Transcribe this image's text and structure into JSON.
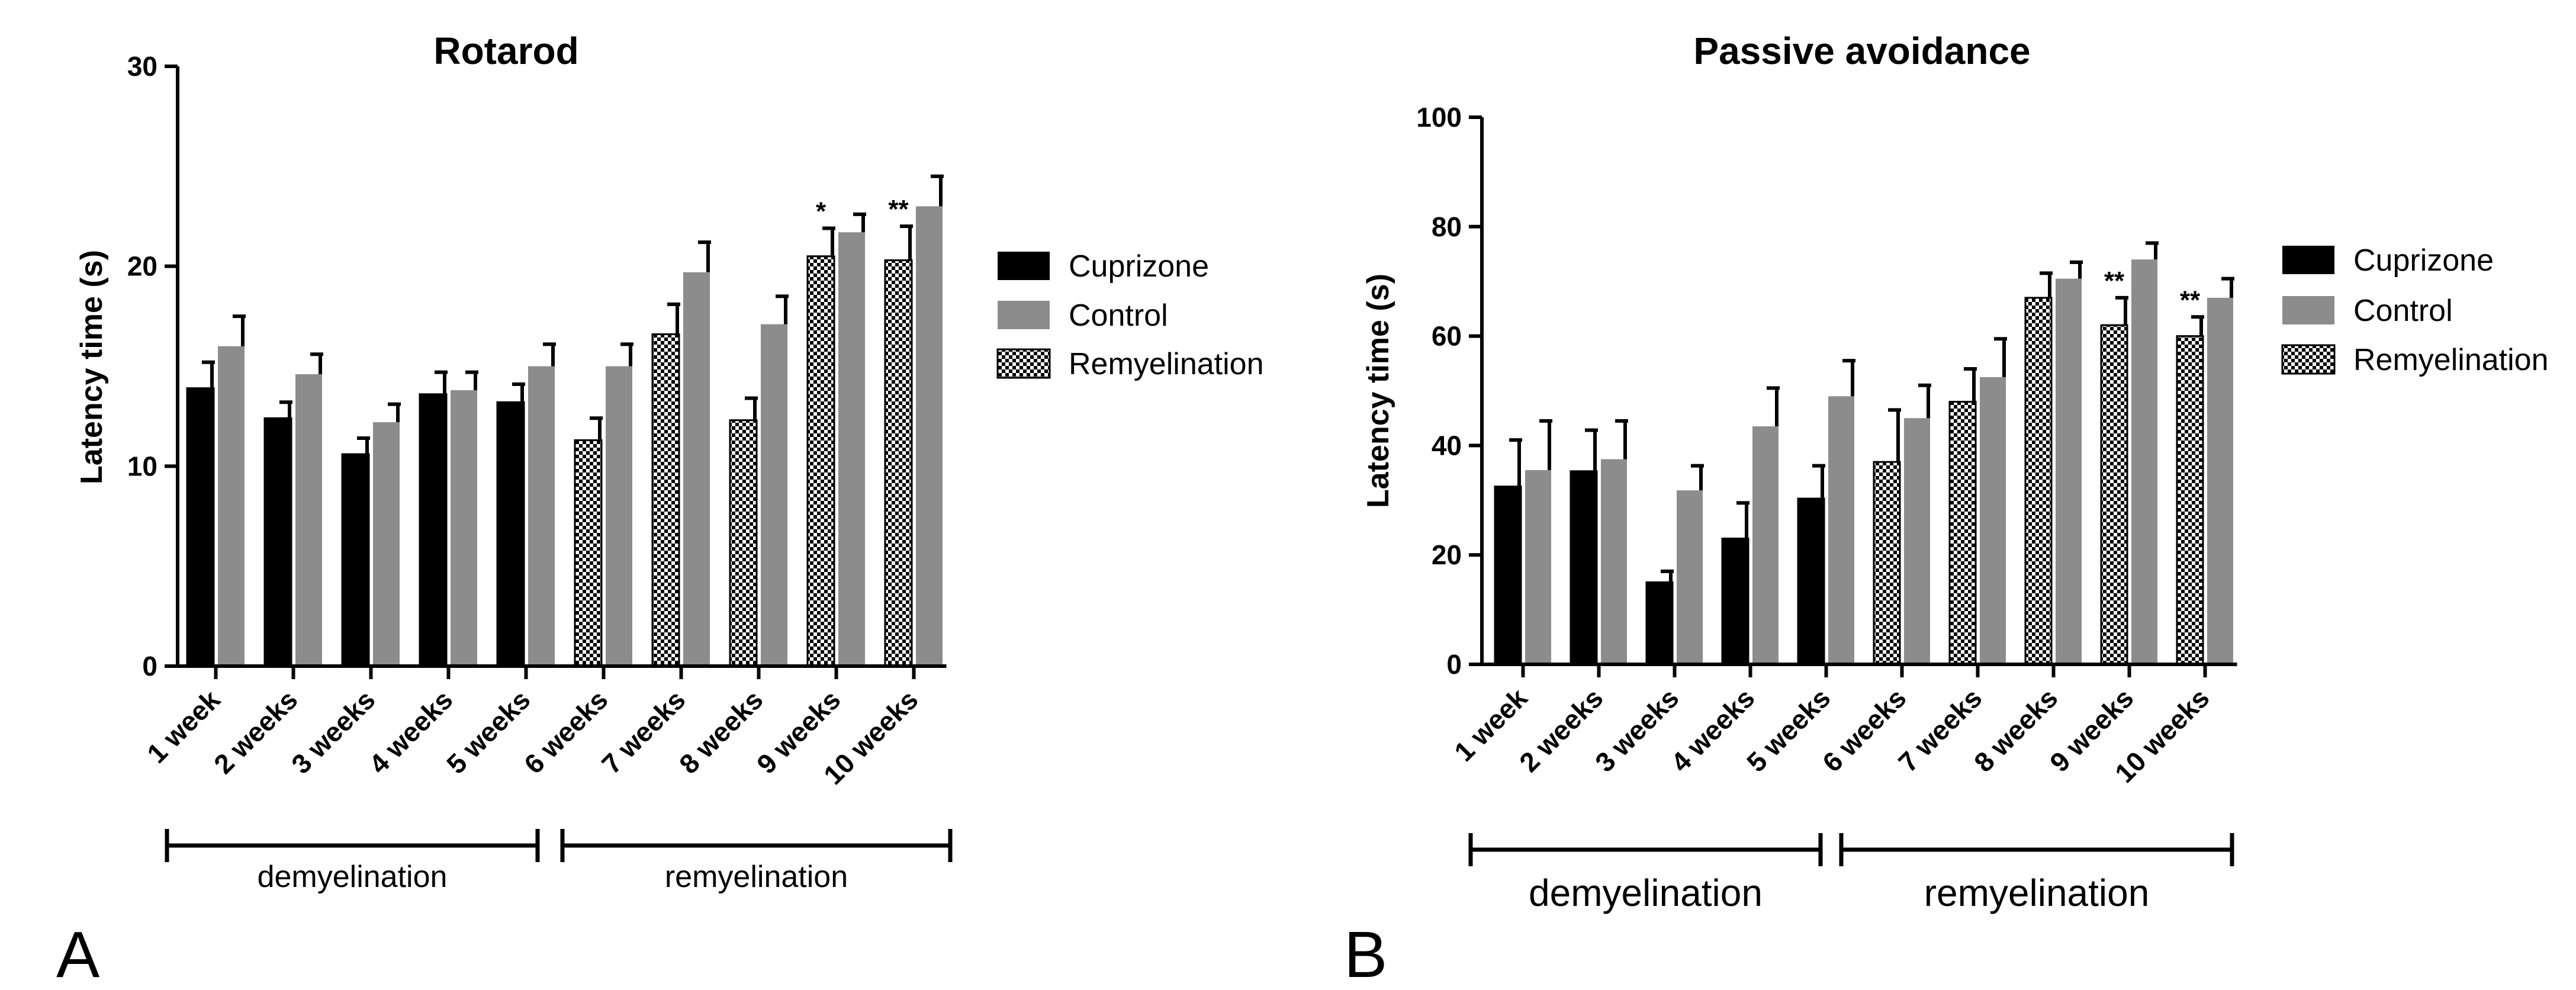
{
  "chart_data": [
    {
      "type": "bar",
      "panel_letter": "A",
      "title": "Rotarod",
      "xlabel": "",
      "ylabel": "Latency time (s)",
      "ylim": [
        0,
        30
      ],
      "yticks": [
        0,
        10,
        20,
        30
      ],
      "grid": false,
      "legend_position": "right",
      "categories": [
        "1 week",
        "2 weeks",
        "3 weeks",
        "4 weeks",
        "5 weeks",
        "6 weeks",
        "7 weeks",
        "8 weeks",
        "9 weeks",
        "10 weeks"
      ],
      "series": [
        {
          "name": "Cuprizone",
          "color": "#000000",
          "pattern": "solid"
        },
        {
          "name": "Control",
          "color": "#8c8c8c",
          "pattern": "solid"
        },
        {
          "name": "Remyelination",
          "color": "#000000",
          "pattern": "checker"
        }
      ],
      "groups": [
        {
          "category": "1 week",
          "first_series": 0,
          "first_value": 13.9,
          "first_error": 1.3,
          "control_value": 16.0,
          "control_error": 1.5,
          "sig": ""
        },
        {
          "category": "2 weeks",
          "first_series": 0,
          "first_value": 12.4,
          "first_error": 0.8,
          "control_value": 14.6,
          "control_error": 1.0,
          "sig": ""
        },
        {
          "category": "3 weeks",
          "first_series": 0,
          "first_value": 10.6,
          "first_error": 0.8,
          "control_value": 12.2,
          "control_error": 0.9,
          "sig": ""
        },
        {
          "category": "4 weeks",
          "first_series": 0,
          "first_value": 13.6,
          "first_error": 1.1,
          "control_value": 13.8,
          "control_error": 0.9,
          "sig": ""
        },
        {
          "category": "5 weeks",
          "first_series": 0,
          "first_value": 13.2,
          "first_error": 0.9,
          "control_value": 15.0,
          "control_error": 1.1,
          "sig": ""
        },
        {
          "category": "6 weeks",
          "first_series": 2,
          "first_value": 11.3,
          "first_error": 1.1,
          "control_value": 15.0,
          "control_error": 1.1,
          "sig": ""
        },
        {
          "category": "7 weeks",
          "first_series": 2,
          "first_value": 16.6,
          "first_error": 1.5,
          "control_value": 19.7,
          "control_error": 1.5,
          "sig": ""
        },
        {
          "category": "8 weeks",
          "first_series": 2,
          "first_value": 12.3,
          "first_error": 1.1,
          "control_value": 17.1,
          "control_error": 1.4,
          "sig": ""
        },
        {
          "category": "9 weeks",
          "first_series": 2,
          "first_value": 20.5,
          "first_error": 1.4,
          "control_value": 21.7,
          "control_error": 0.9,
          "sig": "*"
        },
        {
          "category": "10 weeks",
          "first_series": 2,
          "first_value": 20.3,
          "first_error": 1.7,
          "control_value": 23.0,
          "control_error": 1.5,
          "sig": "**"
        }
      ],
      "phases": [
        {
          "label": "demyelination",
          "from": "1 week",
          "to": "5 weeks"
        },
        {
          "label": "remyelination",
          "from": "6 weeks",
          "to": "10 weeks"
        }
      ]
    },
    {
      "type": "bar",
      "panel_letter": "B",
      "title": "Passive avoidance",
      "xlabel": "",
      "ylabel": "Latency time (s)",
      "ylim": [
        0,
        100
      ],
      "yticks": [
        0,
        20,
        40,
        60,
        80,
        100
      ],
      "grid": false,
      "legend_position": "right",
      "categories": [
        "1 week",
        "2 weeks",
        "3 weeks",
        "4 weeks",
        "5 weeks",
        "6 weeks",
        "7 weeks",
        "8 weeks",
        "9 weeks",
        "10 weeks"
      ],
      "series": [
        {
          "name": "Cuprizone",
          "color": "#000000",
          "pattern": "solid"
        },
        {
          "name": "Control",
          "color": "#8c8c8c",
          "pattern": "solid"
        },
        {
          "name": "Remyelination",
          "color": "#000000",
          "pattern": "checker"
        }
      ],
      "groups": [
        {
          "category": "1 week",
          "first_series": 0,
          "first_value": 32.5,
          "first_error": 8.5,
          "control_value": 35.5,
          "control_error": 9.0,
          "sig": ""
        },
        {
          "category": "2 weeks",
          "first_series": 0,
          "first_value": 35.3,
          "first_error": 7.5,
          "control_value": 37.5,
          "control_error": 7.0,
          "sig": ""
        },
        {
          "category": "3 weeks",
          "first_series": 0,
          "first_value": 15.0,
          "first_error": 2.0,
          "control_value": 31.8,
          "control_error": 4.5,
          "sig": ""
        },
        {
          "category": "4 weeks",
          "first_series": 0,
          "first_value": 23.0,
          "first_error": 6.5,
          "control_value": 43.5,
          "control_error": 7.0,
          "sig": ""
        },
        {
          "category": "5 weeks",
          "first_series": 0,
          "first_value": 30.3,
          "first_error": 6.0,
          "control_value": 49.0,
          "control_error": 6.5,
          "sig": ""
        },
        {
          "category": "6 weeks",
          "first_series": 2,
          "first_value": 37.0,
          "first_error": 9.5,
          "control_value": 45.0,
          "control_error": 6.0,
          "sig": ""
        },
        {
          "category": "7 weeks",
          "first_series": 2,
          "first_value": 48.0,
          "first_error": 6.0,
          "control_value": 52.5,
          "control_error": 7.0,
          "sig": ""
        },
        {
          "category": "8 weeks",
          "first_series": 2,
          "first_value": 67.0,
          "first_error": 4.5,
          "control_value": 70.5,
          "control_error": 3.0,
          "sig": ""
        },
        {
          "category": "9 weeks",
          "first_series": 2,
          "first_value": 62.0,
          "first_error": 5.0,
          "control_value": 74.0,
          "control_error": 3.0,
          "sig": "**"
        },
        {
          "category": "10 weeks",
          "first_series": 2,
          "first_value": 60.0,
          "first_error": 3.5,
          "control_value": 67.0,
          "control_error": 3.5,
          "sig": "**"
        }
      ],
      "phases": [
        {
          "label": "demyelination",
          "from": "1 week",
          "to": "5 weeks"
        },
        {
          "label": "remyelination",
          "from": "6 weeks",
          "to": "10 weeks"
        }
      ]
    }
  ]
}
